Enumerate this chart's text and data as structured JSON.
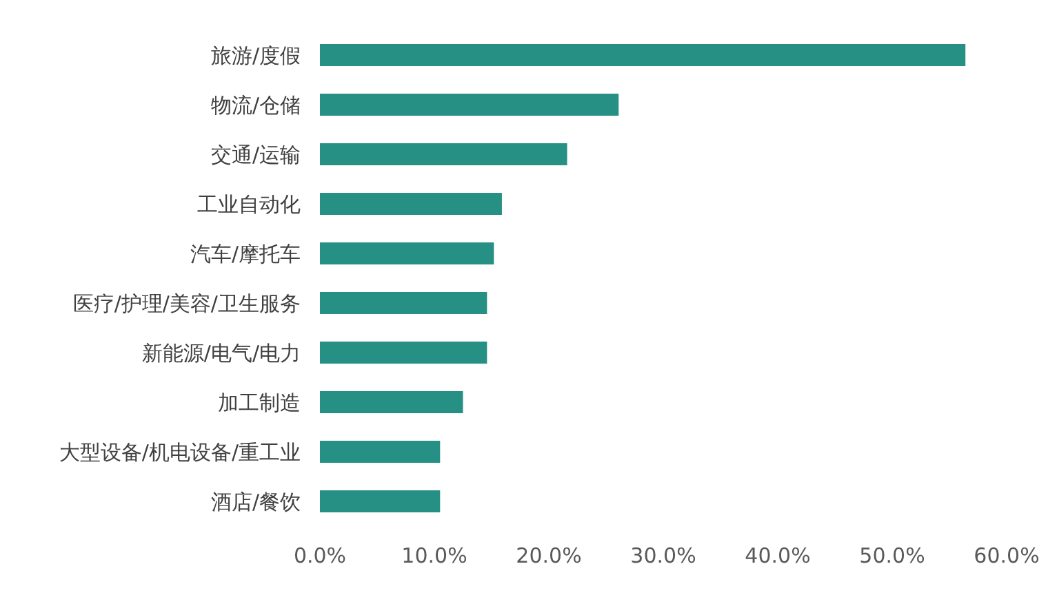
{
  "chart_data": {
    "type": "bar",
    "orientation": "horizontal",
    "categories": [
      "旅游/度假",
      "物流/仓储",
      "交通/运输",
      "工业自动化",
      "汽车/摩托车",
      "医疗/护理/美容/卫生服务",
      "新能源/电气/电力",
      "加工制造",
      "大型设备/机电设备/重工业",
      "酒店/餐饮"
    ],
    "values": [
      56.4,
      26.1,
      21.6,
      15.9,
      15.2,
      14.6,
      14.6,
      12.5,
      10.5,
      10.5
    ],
    "color": "#259083",
    "xlim": [
      0,
      60
    ],
    "xticks": [
      {
        "value": 0,
        "label": "0.0%"
      },
      {
        "value": 10,
        "label": "10.0%"
      },
      {
        "value": 20,
        "label": "20.0%"
      },
      {
        "value": 30,
        "label": "30.0%"
      },
      {
        "value": 40,
        "label": "40.0%"
      },
      {
        "value": 50,
        "label": "50.0%"
      },
      {
        "value": 60,
        "label": "60.0%"
      }
    ],
    "grid": false,
    "legend": false
  }
}
